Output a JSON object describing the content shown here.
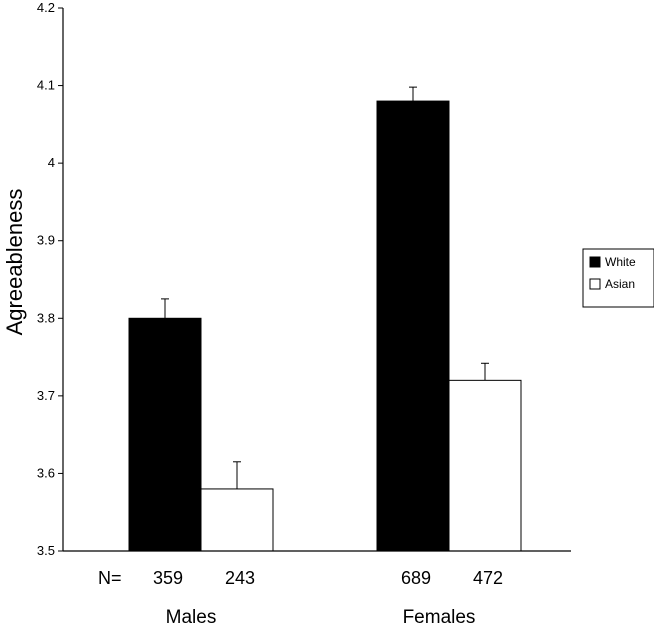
{
  "chart_data": {
    "type": "bar",
    "title": "",
    "ylabel": "Agreeableness",
    "xlabel": "",
    "ylim": [
      3.5,
      4.2
    ],
    "yticks": [
      3.5,
      3.6,
      3.7,
      3.8,
      3.9,
      4,
      4.1,
      4.2
    ],
    "categories": [
      "Males",
      "Females"
    ],
    "series": [
      {
        "name": "White",
        "color": "#000000",
        "values": [
          3.8,
          4.08
        ],
        "error": [
          0.025,
          0.018
        ],
        "n": [
          "359",
          "689"
        ]
      },
      {
        "name": "Asian",
        "color": "#ffffff",
        "values": [
          3.58,
          3.72
        ],
        "error": [
          0.035,
          0.022
        ],
        "n": [
          "243",
          "472"
        ]
      }
    ],
    "n_prefix": "N=",
    "legend_position": "right",
    "grid": false
  }
}
